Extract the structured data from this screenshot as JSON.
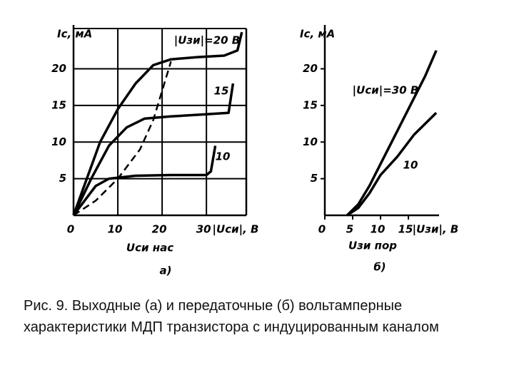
{
  "chart_data": [
    {
      "type": "line",
      "subtitle": "а)",
      "ylabel": "Iс, мА",
      "xlabel": "|Uси|, В",
      "xlim": [
        0,
        39
      ],
      "ylim": [
        0,
        25.5
      ],
      "xticks": [
        0,
        10,
        20,
        30
      ],
      "yticks": [
        5,
        10,
        15,
        20
      ],
      "grid": true,
      "series": [
        {
          "name": "|Uзи|=20 В",
          "color": "#000000",
          "x": [
            0,
            3,
            6,
            10,
            14,
            18,
            22,
            28,
            34,
            37,
            38
          ],
          "values": [
            0,
            5,
            10,
            14.5,
            18,
            20.5,
            21.3,
            21.6,
            21.8,
            22.5,
            25
          ]
        },
        {
          "name": "15",
          "color": "#000000",
          "x": [
            0,
            4,
            8,
            12,
            16,
            22,
            30,
            35,
            36
          ],
          "values": [
            0,
            5,
            9.5,
            12,
            13.2,
            13.5,
            13.8,
            14,
            18
          ]
        },
        {
          "name": "10",
          "color": "#000000",
          "x": [
            0,
            5,
            8,
            14,
            22,
            30,
            31,
            32
          ],
          "values": [
            0,
            4,
            5,
            5.4,
            5.5,
            5.5,
            6,
            9.5
          ]
        },
        {
          "name": "Uси нас",
          "color": "#000000",
          "dashed": true,
          "x": [
            0,
            5,
            10,
            15,
            18,
            20,
            22
          ],
          "values": [
            0,
            2,
            5,
            9,
            13,
            17,
            21
          ]
        }
      ]
    },
    {
      "type": "line",
      "subtitle": "б)",
      "ylabel": "Iс, мА",
      "xlabel": "|Uзи|, В",
      "annotation": "Uзи пор",
      "xlim": [
        0,
        20.5
      ],
      "ylim": [
        0,
        25.5
      ],
      "xticks": [
        0,
        5,
        10,
        15
      ],
      "yticks": [
        5,
        10,
        15,
        20
      ],
      "grid": false,
      "series": [
        {
          "name": "|Uси|=30 В",
          "color": "#000000",
          "x": [
            4,
            6,
            8,
            10,
            13,
            16,
            18,
            20
          ],
          "values": [
            0,
            1.5,
            4,
            7,
            11.5,
            16,
            19,
            22.5
          ]
        },
        {
          "name": "10",
          "color": "#000000",
          "x": [
            4,
            6,
            8,
            10,
            13,
            16,
            20
          ],
          "values": [
            0,
            1,
            3,
            5.5,
            8,
            11,
            14
          ]
        }
      ]
    }
  ],
  "caption": "Рис. 9. Выходные (а) и передаточные (б) вольтамперные характеристики МДП транзистора с индуцированным каналом"
}
